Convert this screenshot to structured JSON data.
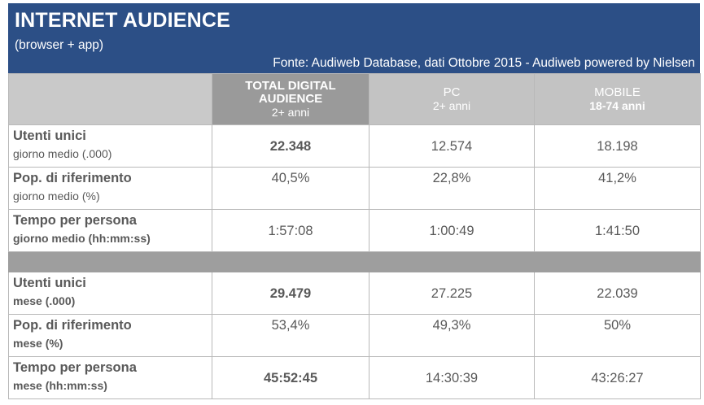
{
  "header": {
    "title": "INTERNET AUDIENCE",
    "subtitle": "(browser + app)",
    "source": "Fonte: Audiweb Database, dati Ottobre 2015 - Audiweb powered by Nielsen"
  },
  "columns": [
    {
      "line1": "TOTAL DIGITAL",
      "line2": "AUDIENCE",
      "sub": "2+ anni"
    },
    {
      "line1": "PC",
      "line2": "",
      "sub": "2+ anni"
    },
    {
      "line1": "MOBILE",
      "line2": "",
      "sub": "18-74 anni"
    }
  ],
  "rows_day": [
    {
      "label": "Utenti unici",
      "sublabel": "giorno medio (.000)",
      "values": [
        "22.348",
        "12.574",
        "18.198"
      ]
    },
    {
      "label": "Pop. di riferimento",
      "sublabel": "giorno medio (%)",
      "values": [
        "40,5%",
        "22,8%",
        "41,2%"
      ]
    },
    {
      "label": "Tempo per persona",
      "sublabel": "giorno medio (hh:mm:ss)",
      "values": [
        "1:57:08",
        "1:00:49",
        "1:41:50"
      ]
    }
  ],
  "rows_month": [
    {
      "label": "Utenti unici",
      "sublabel": "mese (.000)",
      "values": [
        "29.479",
        "27.225",
        "22.039"
      ]
    },
    {
      "label": "Pop. di riferimento",
      "sublabel": "mese (%)",
      "values": [
        "53,4%",
        "49,3%",
        "50%"
      ]
    },
    {
      "label": "Tempo per persona",
      "sublabel": "mese (hh:mm:ss)",
      "values": [
        "45:52:45",
        "14:30:39",
        "43:26:27"
      ]
    }
  ]
}
